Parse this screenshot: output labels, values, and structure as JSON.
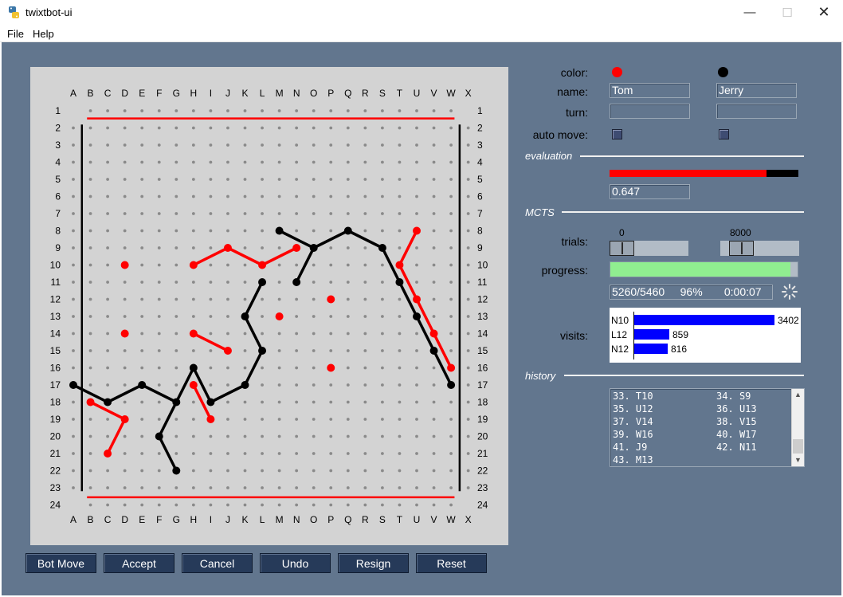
{
  "window": {
    "title": "twixtbot-ui",
    "minimize": "—",
    "maximize": "☐",
    "close": "✕"
  },
  "menu": [
    {
      "label": "File"
    },
    {
      "label": "Help"
    }
  ],
  "colors": {
    "panel": "#62768e",
    "board": "#d3d3d3",
    "red": "#ff0000",
    "black": "#000000",
    "button": "#263a59",
    "progress": "#90ee90",
    "visit_bar": "#0000ff"
  },
  "board": {
    "columns": [
      "A",
      "B",
      "C",
      "D",
      "E",
      "F",
      "G",
      "H",
      "I",
      "J",
      "K",
      "L",
      "M",
      "N",
      "O",
      "P",
      "Q",
      "R",
      "S",
      "T",
      "U",
      "V",
      "W",
      "X"
    ],
    "rows": [
      "1",
      "2",
      "3",
      "4",
      "5",
      "6",
      "7",
      "8",
      "9",
      "10",
      "11",
      "12",
      "13",
      "14",
      "15",
      "16",
      "17",
      "18",
      "19",
      "20",
      "21",
      "22",
      "23",
      "24"
    ],
    "red_pegs": [
      "D10",
      "H10",
      "J9",
      "L10",
      "N9",
      "T10",
      "U8",
      "U12",
      "V14",
      "W16",
      "D14",
      "H14",
      "J15",
      "M13",
      "P12",
      "P16",
      "H17",
      "I19",
      "B18",
      "D19",
      "C21"
    ],
    "black_pegs": [
      "M8",
      "O9",
      "Q8",
      "S9",
      "T11",
      "U13",
      "V15",
      "W17",
      "N11",
      "L11",
      "K13",
      "L15",
      "K17",
      "I18",
      "H16",
      "G18",
      "F20",
      "G22",
      "E17",
      "C18",
      "A17"
    ],
    "red_links": [
      [
        "H10",
        "J9"
      ],
      [
        "J9",
        "L10"
      ],
      [
        "L10",
        "N9"
      ],
      [
        "T10",
        "U8"
      ],
      [
        "T10",
        "U12"
      ],
      [
        "U12",
        "V14"
      ],
      [
        "V14",
        "W16"
      ],
      [
        "H14",
        "J15"
      ],
      [
        "H17",
        "I19"
      ],
      [
        "B18",
        "D19"
      ],
      [
        "D19",
        "C21"
      ]
    ],
    "black_links": [
      [
        "M8",
        "O9"
      ],
      [
        "O9",
        "Q8"
      ],
      [
        "Q8",
        "S9"
      ],
      [
        "S9",
        "T11"
      ],
      [
        "T11",
        "U13"
      ],
      [
        "U13",
        "V15"
      ],
      [
        "V15",
        "W17"
      ],
      [
        "O9",
        "N11"
      ],
      [
        "L11",
        "K13"
      ],
      [
        "K13",
        "L15"
      ],
      [
        "L15",
        "K17"
      ],
      [
        "K17",
        "I18"
      ],
      [
        "I18",
        "H16"
      ],
      [
        "H16",
        "G18"
      ],
      [
        "G18",
        "F20"
      ],
      [
        "F20",
        "G22"
      ],
      [
        "G18",
        "E17"
      ],
      [
        "E17",
        "C18"
      ],
      [
        "C18",
        "A17"
      ]
    ]
  },
  "panel": {
    "color_label": "color:",
    "name_label": "name:",
    "turn_label": "turn:",
    "automove_label": "auto move:",
    "player1": {
      "name": "Tom",
      "turn": ""
    },
    "player2": {
      "name": "Jerry",
      "turn": ""
    }
  },
  "evaluation": {
    "header": "evaluation",
    "value": "0.647",
    "fraction": 0.83
  },
  "mcts": {
    "header": "MCTS",
    "trials_label": "trials:",
    "trials_min": "0",
    "trials_max": "8000",
    "progress_label": "progress:",
    "progress_fraction": 0.96,
    "progress_text": "5260/5460     96%       0:00:07"
  },
  "visits": {
    "label": "visits:",
    "items": [
      {
        "move": "N10",
        "count": "3402",
        "fraction": 1.0
      },
      {
        "move": "L12",
        "count": "859",
        "fraction": 0.252
      },
      {
        "move": "N12",
        "count": "816",
        "fraction": 0.24
      }
    ]
  },
  "history": {
    "header": "history",
    "rows": [
      "33. T10           34. S9",
      "35. U12           36. U13",
      "37. V14           38. V15",
      "39. W16           40. W17",
      "41. J9            42. N11",
      "43. M13"
    ]
  },
  "buttons": [
    "Bot Move",
    "Accept",
    "Cancel",
    "Undo",
    "Resign",
    "Reset"
  ]
}
